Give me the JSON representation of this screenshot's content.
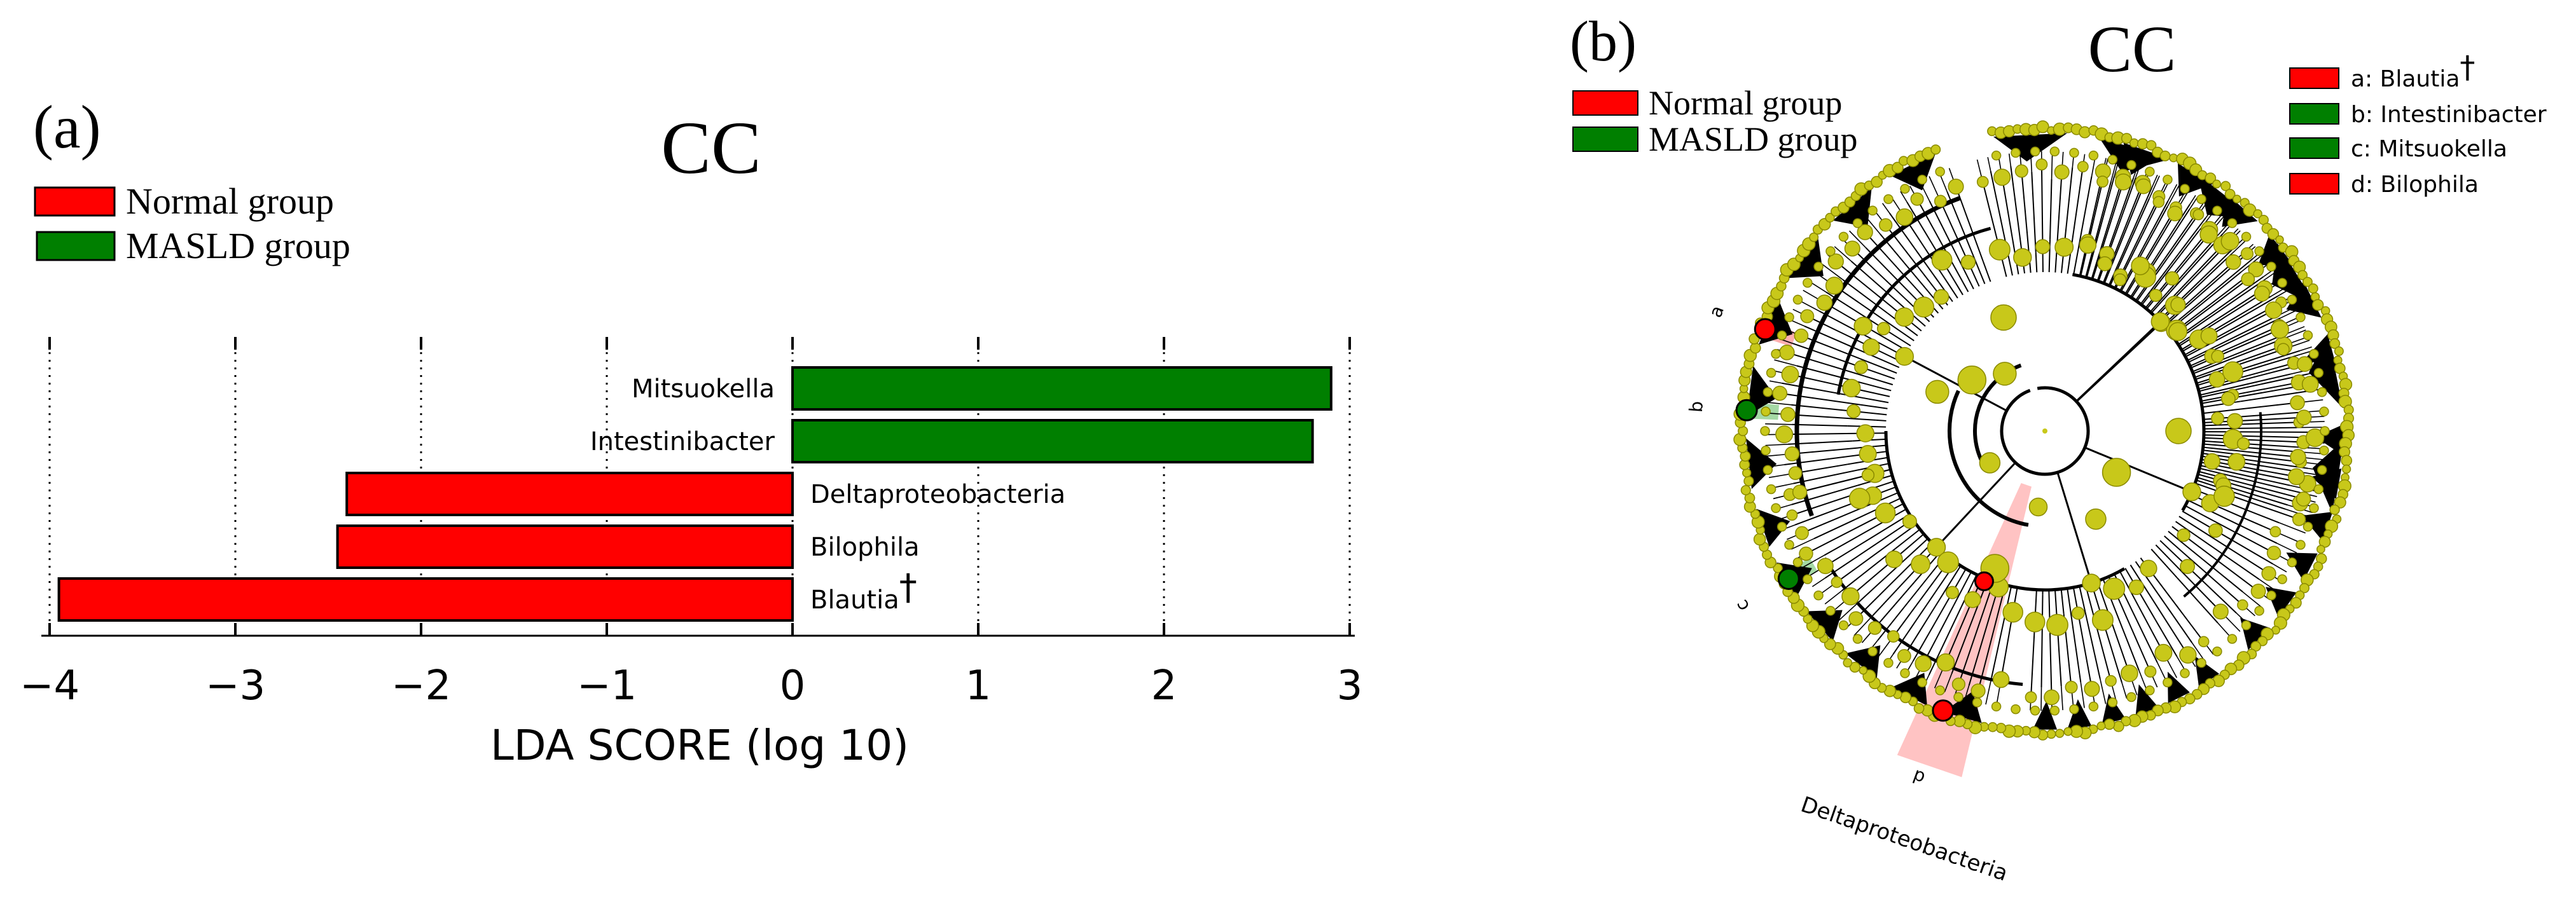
{
  "colors": {
    "normal": "#ff0000",
    "masld": "#007f00",
    "node": "#c8c81a",
    "node_stroke": "#8a8a00",
    "highlight_red": "#ff9b9b",
    "highlight_green": "#8fd08f"
  },
  "chart_data": [
    {
      "type": "bar",
      "orientation": "horizontal",
      "panel_label": "(a)",
      "title": "CC",
      "xlabel": "LDA SCORE (log 10)",
      "xlim": [
        -4,
        3
      ],
      "xticks": [
        -4,
        -3,
        -2,
        -1,
        0,
        1,
        2,
        3
      ],
      "xtick_labels": [
        "−4",
        "−3",
        "−2",
        "−1",
        "0",
        "1",
        "2",
        "3"
      ],
      "grid": "vertical dotted",
      "legend": {
        "placement": "top-left",
        "entries": [
          {
            "label": "Normal group",
            "color_key": "normal"
          },
          {
            "label": "MASLD group",
            "color_key": "masld"
          }
        ]
      },
      "bars": [
        {
          "name": "Mitsuokella",
          "value": 2.9,
          "group": "masld",
          "dagger": false
        },
        {
          "name": "Intestinibacter",
          "value": 2.8,
          "group": "masld",
          "dagger": false
        },
        {
          "name": "Deltaproteobacteria",
          "value": -2.4,
          "group": "normal",
          "dagger": false
        },
        {
          "name": "Bilophila",
          "value": -2.45,
          "group": "normal",
          "dagger": false
        },
        {
          "name": "Blautia",
          "value": -3.95,
          "group": "normal",
          "dagger": true
        }
      ],
      "dagger_symbol": "†"
    },
    {
      "type": "cladogram",
      "panel_label": "(b)",
      "title": "CC",
      "group_legend": {
        "placement": "top-left",
        "entries": [
          {
            "label": "Normal group",
            "color_key": "normal"
          },
          {
            "label": "MASLD group",
            "color_key": "masld"
          }
        ]
      },
      "taxa_legend": {
        "placement": "top-right",
        "entries": [
          {
            "label": "a: Blautia",
            "color_key": "normal",
            "dagger": true
          },
          {
            "label": "b: Intestinibacter",
            "color_key": "masld",
            "dagger": false
          },
          {
            "label": "c: Mitsuokella",
            "color_key": "masld",
            "dagger": false
          },
          {
            "label": "d: Bilophila",
            "color_key": "normal",
            "dagger": false
          }
        ]
      },
      "highlighted_clades": [
        {
          "letter": "a",
          "angle_deg": 200,
          "group": "normal"
        },
        {
          "letter": "b",
          "angle_deg": 184,
          "group": "masld"
        },
        {
          "letter": "c",
          "angle_deg": 150,
          "group": "masld"
        },
        {
          "letter": "d",
          "angle_deg": 110,
          "group": "normal"
        }
      ],
      "sector_label": "Deltaproteobacteria",
      "sector_angle_deg": 109,
      "dagger_symbol": "†"
    }
  ]
}
